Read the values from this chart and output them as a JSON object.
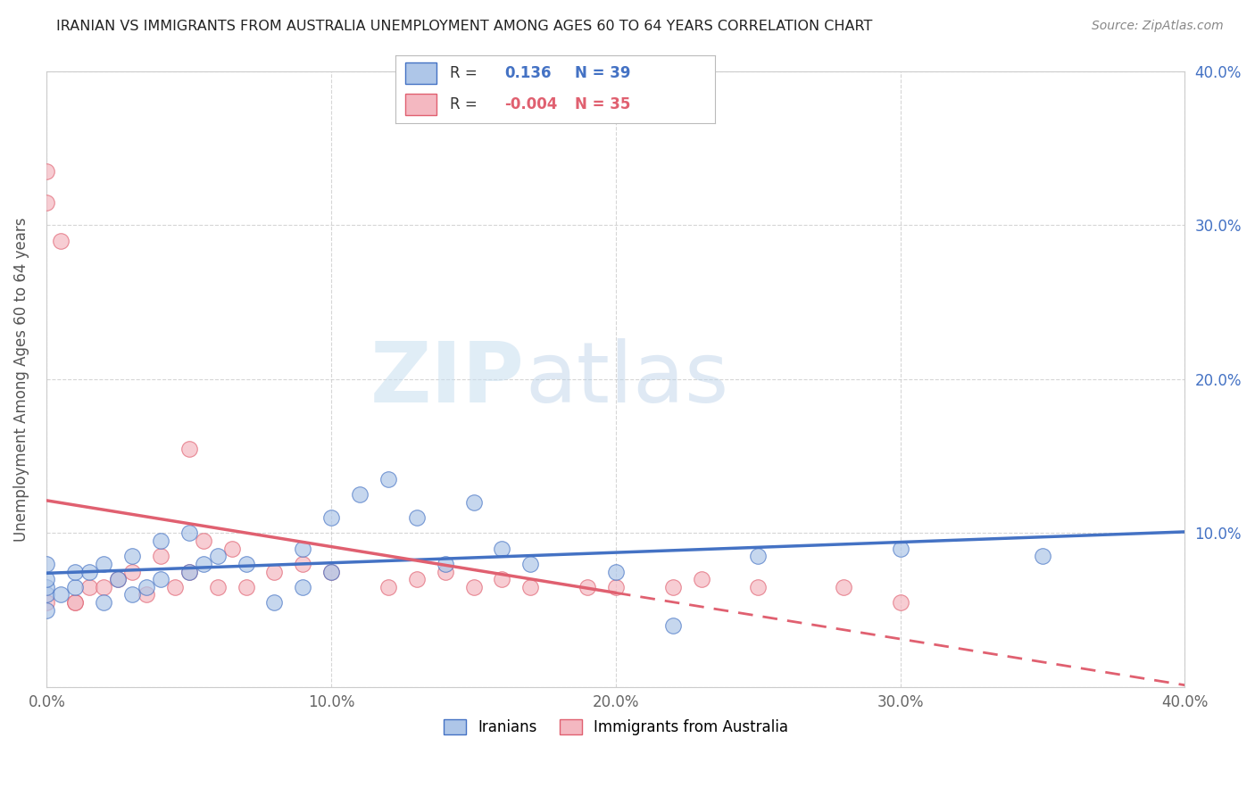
{
  "title": "IRANIAN VS IMMIGRANTS FROM AUSTRALIA UNEMPLOYMENT AMONG AGES 60 TO 64 YEARS CORRELATION CHART",
  "source": "Source: ZipAtlas.com",
  "ylabel": "Unemployment Among Ages 60 to 64 years",
  "xlim": [
    0.0,
    0.4
  ],
  "ylim": [
    0.0,
    0.4
  ],
  "xticks": [
    0.0,
    0.1,
    0.2,
    0.3,
    0.4
  ],
  "yticks": [
    0.0,
    0.1,
    0.2,
    0.3,
    0.4
  ],
  "xticklabels": [
    "0.0%",
    "10.0%",
    "20.0%",
    "30.0%",
    "40.0%"
  ],
  "yticklabels_left": [
    "",
    "",
    "",
    "",
    ""
  ],
  "yticklabels_right": [
    "",
    "10.0%",
    "20.0%",
    "30.0%",
    "40.0%"
  ],
  "iranians_color": "#aec6e8",
  "australia_color": "#f4b8c1",
  "iranians_line_color": "#4472c4",
  "australia_line_color": "#e06070",
  "R_iranians": 0.136,
  "N_iranians": 39,
  "R_australia": -0.004,
  "N_australia": 35,
  "watermark_zip": "ZIP",
  "watermark_atlas": "atlas",
  "iranians_x": [
    0.0,
    0.0,
    0.0,
    0.0,
    0.0,
    0.005,
    0.01,
    0.01,
    0.015,
    0.02,
    0.02,
    0.025,
    0.03,
    0.03,
    0.035,
    0.04,
    0.04,
    0.05,
    0.05,
    0.055,
    0.06,
    0.07,
    0.08,
    0.09,
    0.09,
    0.1,
    0.1,
    0.11,
    0.12,
    0.13,
    0.14,
    0.15,
    0.16,
    0.17,
    0.2,
    0.22,
    0.25,
    0.3,
    0.35
  ],
  "iranians_y": [
    0.05,
    0.06,
    0.065,
    0.07,
    0.08,
    0.06,
    0.065,
    0.075,
    0.075,
    0.055,
    0.08,
    0.07,
    0.06,
    0.085,
    0.065,
    0.07,
    0.095,
    0.075,
    0.1,
    0.08,
    0.085,
    0.08,
    0.055,
    0.065,
    0.09,
    0.075,
    0.11,
    0.125,
    0.135,
    0.11,
    0.08,
    0.12,
    0.09,
    0.08,
    0.075,
    0.04,
    0.085,
    0.09,
    0.085
  ],
  "australia_x": [
    0.0,
    0.0,
    0.0,
    0.005,
    0.01,
    0.01,
    0.015,
    0.02,
    0.025,
    0.03,
    0.035,
    0.04,
    0.045,
    0.05,
    0.05,
    0.055,
    0.06,
    0.065,
    0.07,
    0.08,
    0.09,
    0.1,
    0.12,
    0.13,
    0.14,
    0.15,
    0.16,
    0.17,
    0.19,
    0.2,
    0.22,
    0.23,
    0.25,
    0.28,
    0.3
  ],
  "australia_y": [
    0.335,
    0.315,
    0.055,
    0.29,
    0.055,
    0.055,
    0.065,
    0.065,
    0.07,
    0.075,
    0.06,
    0.085,
    0.065,
    0.075,
    0.155,
    0.095,
    0.065,
    0.09,
    0.065,
    0.075,
    0.08,
    0.075,
    0.065,
    0.07,
    0.075,
    0.065,
    0.07,
    0.065,
    0.065,
    0.065,
    0.065,
    0.07,
    0.065,
    0.065,
    0.055
  ]
}
